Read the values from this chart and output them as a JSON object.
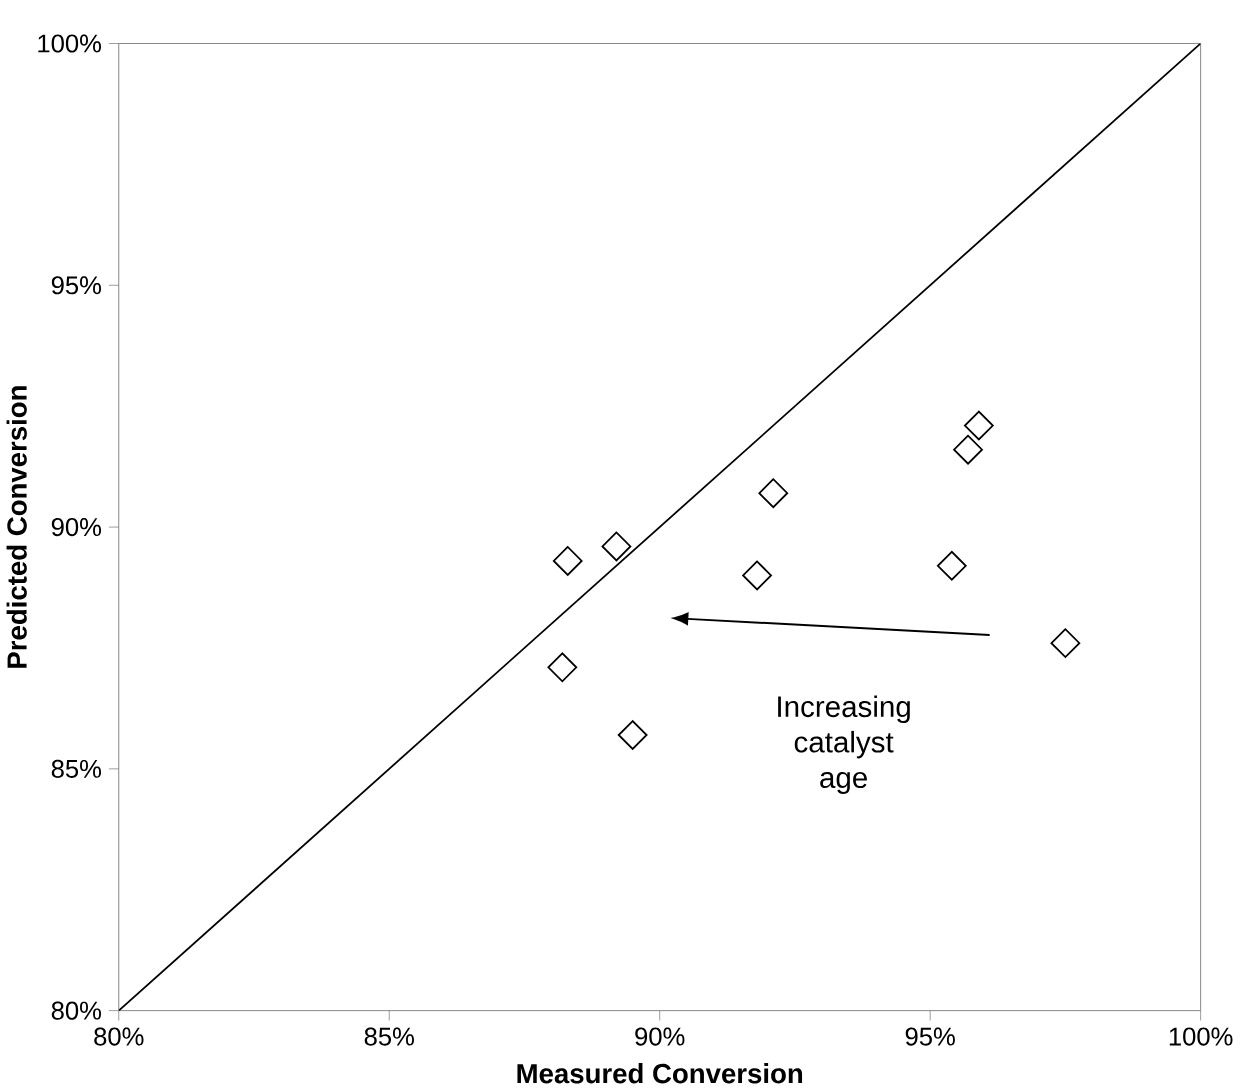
{
  "chart_data": {
    "type": "scatter",
    "xlabel": "Measured Conversion",
    "ylabel": "Predicted Conversion",
    "xlim": [
      80,
      100
    ],
    "ylim": [
      80,
      100
    ],
    "xticks": [
      {
        "value": 80,
        "label": "80%"
      },
      {
        "value": 85,
        "label": "85%"
      },
      {
        "value": 90,
        "label": "90%"
      },
      {
        "value": 95,
        "label": "95%"
      },
      {
        "value": 100,
        "label": "100%"
      }
    ],
    "yticks": [
      {
        "value": 80,
        "label": "80%"
      },
      {
        "value": 85,
        "label": "85%"
      },
      {
        "value": 90,
        "label": "90%"
      },
      {
        "value": 95,
        "label": "95%"
      },
      {
        "value": 100,
        "label": "100%"
      }
    ],
    "grid": false,
    "annotations": [
      "Increasing catalyst age"
    ],
    "series": [
      {
        "marker": "diamond",
        "color": "#000000",
        "x": [
          88.3,
          89.2,
          92.1,
          91.8,
          88.2,
          89.5,
          95.9,
          95.7,
          95.4,
          97.5
        ],
        "values": [
          89.3,
          89.6,
          90.7,
          89.0,
          87.1,
          85.7,
          92.1,
          91.6,
          89.2,
          87.6
        ]
      },
      {
        "type": "line",
        "marker": "none",
        "color": "#000000",
        "x": [
          80,
          100
        ],
        "values": [
          80,
          100
        ]
      }
    ]
  }
}
